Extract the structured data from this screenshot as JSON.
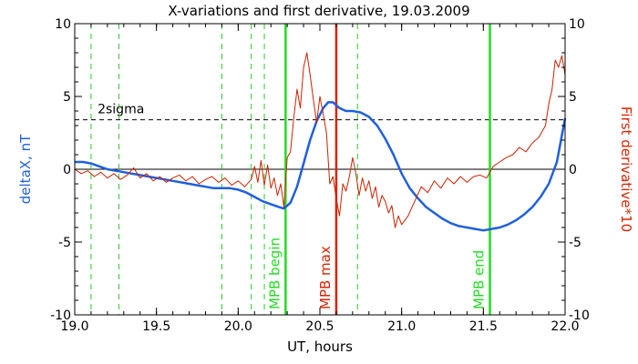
{
  "chart_data": {
    "type": "line",
    "title": "X-variations and first derivative, 19.03.2009",
    "xlabel": "UT, hours",
    "ylabel_left": "deltaX, nT",
    "ylabel_right": "First derivative*10",
    "xlim": [
      19.0,
      22.0
    ],
    "ylim": [
      -10,
      10
    ],
    "x_ticks": [
      "19.0",
      "19.5",
      "20.0",
      "20.5",
      "21.0",
      "21.5",
      "22.0"
    ],
    "x_tick_values": [
      19.0,
      19.5,
      20.0,
      20.5,
      21.0,
      21.5,
      22.0
    ],
    "y_ticks_left": [
      "10",
      "5",
      "0",
      "-5",
      "-10"
    ],
    "y_ticks_right": [
      "10",
      "5",
      "0",
      "-5",
      "-10"
    ],
    "y_tick_values": [
      10,
      5,
      0,
      -5,
      -10
    ],
    "zero_line": 0,
    "threshold": {
      "label": "2sigma",
      "value": 3.4,
      "color": "#000000"
    },
    "series": [
      {
        "color": "#1f5fe0",
        "x": [
          19.0,
          19.05,
          19.1,
          19.15,
          19.2,
          19.25,
          19.3,
          19.35,
          19.4,
          19.45,
          19.5,
          19.55,
          19.6,
          19.65,
          19.7,
          19.75,
          19.8,
          19.85,
          19.9,
          19.95,
          20.0,
          20.05,
          20.1,
          20.15,
          20.2,
          20.25,
          20.28,
          20.32,
          20.36,
          20.4,
          20.44,
          20.48,
          20.52,
          20.55,
          20.58,
          20.62,
          20.66,
          20.7,
          20.75,
          20.8,
          20.85,
          20.9,
          20.95,
          21.0,
          21.05,
          21.1,
          21.15,
          21.2,
          21.25,
          21.3,
          21.35,
          21.4,
          21.45,
          21.5,
          21.55,
          21.6,
          21.65,
          21.7,
          21.75,
          21.8,
          21.85,
          21.9,
          21.95,
          22.0
        ],
        "y": [
          0.5,
          0.5,
          0.4,
          0.2,
          0.0,
          -0.1,
          -0.2,
          -0.3,
          -0.4,
          -0.5,
          -0.6,
          -0.7,
          -0.8,
          -0.9,
          -1.0,
          -1.1,
          -1.2,
          -1.3,
          -1.3,
          -1.3,
          -1.4,
          -1.6,
          -1.9,
          -2.2,
          -2.4,
          -2.6,
          -2.7,
          -2.3,
          -1.2,
          0.4,
          2.0,
          3.3,
          4.2,
          4.6,
          4.6,
          4.2,
          4.0,
          4.0,
          3.9,
          3.6,
          3.0,
          2.1,
          1.0,
          -0.3,
          -1.3,
          -2.0,
          -2.6,
          -3.0,
          -3.4,
          -3.7,
          -3.9,
          -4.0,
          -4.1,
          -4.2,
          -4.1,
          -4.0,
          -3.8,
          -3.5,
          -3.1,
          -2.6,
          -1.9,
          -1.0,
          0.5,
          3.5
        ]
      },
      {
        "color": "#cc2200",
        "x": [
          19.0,
          19.04,
          19.08,
          19.12,
          19.16,
          19.2,
          19.24,
          19.28,
          19.32,
          19.36,
          19.4,
          19.44,
          19.48,
          19.52,
          19.56,
          19.6,
          19.64,
          19.68,
          19.72,
          19.76,
          19.8,
          19.84,
          19.88,
          19.92,
          19.96,
          20.0,
          20.04,
          20.08,
          20.1,
          20.12,
          20.14,
          20.16,
          20.18,
          20.2,
          20.22,
          20.24,
          20.26,
          20.28,
          20.3,
          20.32,
          20.34,
          20.36,
          20.38,
          20.4,
          20.42,
          20.44,
          20.46,
          20.48,
          20.5,
          20.52,
          20.54,
          20.56,
          20.58,
          20.6,
          20.62,
          20.64,
          20.66,
          20.68,
          20.7,
          20.72,
          20.74,
          20.76,
          20.78,
          20.8,
          20.82,
          20.84,
          20.86,
          20.88,
          20.9,
          20.92,
          20.94,
          20.96,
          20.98,
          21.0,
          21.04,
          21.08,
          21.12,
          21.16,
          21.2,
          21.24,
          21.28,
          21.32,
          21.36,
          21.4,
          21.44,
          21.48,
          21.52,
          21.56,
          21.6,
          21.64,
          21.68,
          21.72,
          21.76,
          21.8,
          21.84,
          21.88,
          21.9,
          21.92,
          21.94,
          21.96,
          21.98,
          22.0
        ],
        "y": [
          0.0,
          -0.3,
          -0.1,
          -0.5,
          -0.2,
          -0.6,
          -0.3,
          -0.7,
          -0.4,
          0.1,
          -0.6,
          -0.3,
          -0.8,
          -0.5,
          -0.9,
          -0.6,
          -0.4,
          -0.8,
          -0.5,
          -1.0,
          -0.7,
          -0.5,
          -0.9,
          -0.6,
          -1.1,
          -0.8,
          -1.2,
          -0.7,
          0.2,
          -0.9,
          0.6,
          -1.1,
          0.3,
          -1.3,
          -0.6,
          -1.8,
          -1.0,
          -2.6,
          0.8,
          1.2,
          3.5,
          5.5,
          4.2,
          7.0,
          8.0,
          6.5,
          4.8,
          3.2,
          5.0,
          3.8,
          2.5,
          -1.0,
          -0.5,
          -2.0,
          -3.2,
          -1.0,
          -1.5,
          -0.5,
          0.8,
          -0.3,
          -1.8,
          -0.6,
          -1.5,
          -0.8,
          -2.0,
          -1.2,
          -2.6,
          -1.8,
          -2.2,
          -3.0,
          -2.5,
          -4.0,
          -3.2,
          -3.8,
          -3.2,
          -2.2,
          -1.2,
          -1.6,
          -0.8,
          -1.3,
          -0.6,
          -1.0,
          -0.5,
          -0.9,
          -0.5,
          -0.4,
          -0.6,
          0.2,
          0.5,
          0.8,
          1.0,
          1.5,
          1.2,
          1.8,
          2.2,
          3.0,
          4.5,
          5.5,
          7.5,
          7.0,
          7.8,
          6.5
        ]
      }
    ],
    "markers": [
      {
        "label": "MPB begin",
        "x": 20.29,
        "color": "#22dd22"
      },
      {
        "label": "MPB max",
        "x": 20.6,
        "color": "#dd2200"
      },
      {
        "label": "MPB end",
        "x": 21.54,
        "color": "#22dd22"
      }
    ],
    "dashed_verticals": {
      "color": "#22cc22",
      "x": [
        19.1,
        19.27,
        19.9,
        20.08,
        20.16,
        20.73
      ]
    }
  }
}
